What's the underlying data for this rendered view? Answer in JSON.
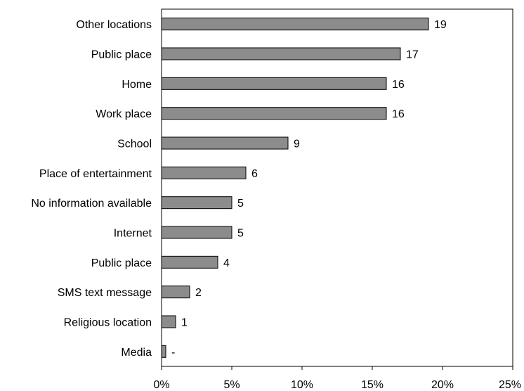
{
  "chart_data": {
    "type": "bar",
    "orientation": "horizontal",
    "categories": [
      "Other locations",
      "Public place",
      "Home",
      "Work place",
      "School",
      "Place of entertainment",
      "No information available",
      "Internet",
      "Public place",
      "SMS text message",
      "Religious location",
      "Media"
    ],
    "values": [
      19,
      17,
      16,
      16,
      9,
      6,
      5,
      5,
      4,
      2,
      1,
      0.3
    ],
    "data_labels": [
      "19",
      "17",
      "16",
      "16",
      "9",
      "6",
      "5",
      "5",
      "4",
      "2",
      "1",
      "-"
    ],
    "x_ticks": [
      "0%",
      "5%",
      "10%",
      "15%",
      "20%",
      "25%"
    ],
    "xlim": [
      0,
      25
    ],
    "title": "",
    "xlabel": "",
    "ylabel": "",
    "grid": false,
    "legend": "none",
    "bar_color": "#8c8c8c",
    "bar_edge_color": "#000000"
  }
}
